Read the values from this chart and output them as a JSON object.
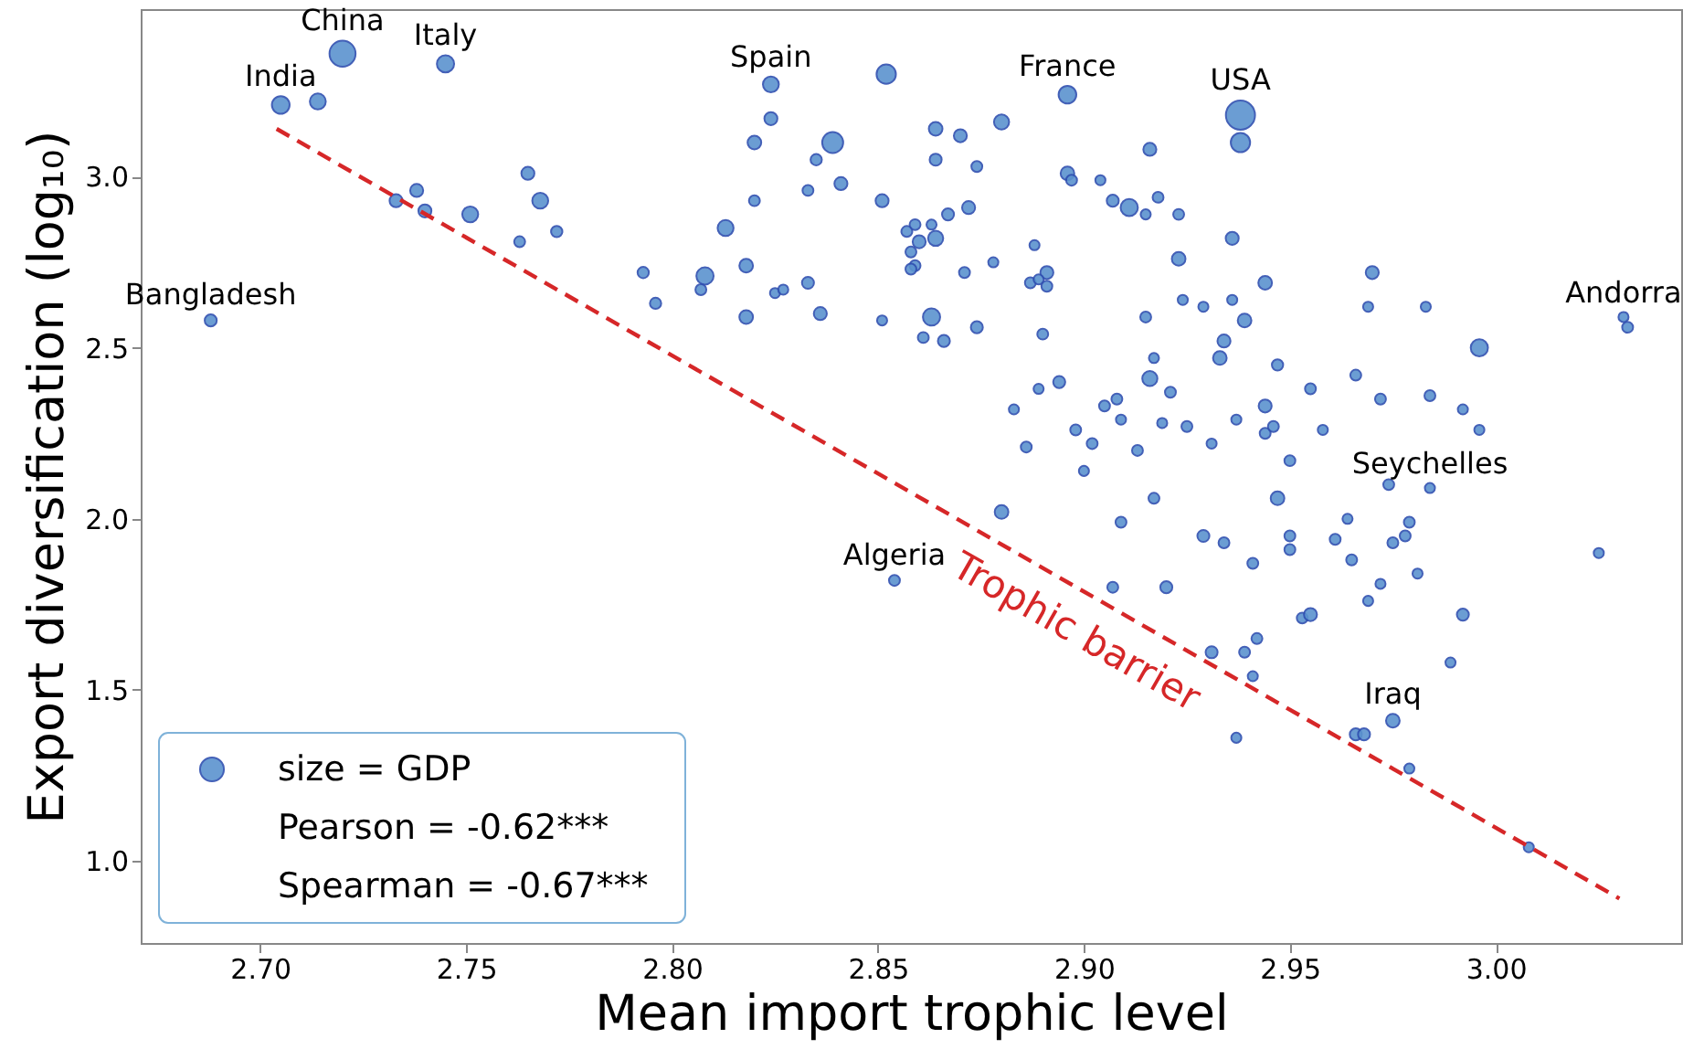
{
  "chart_data": {
    "type": "bubble",
    "xlabel": "Mean import trophic level",
    "ylabel": "Export diversification (log₁₀)",
    "xlim": [
      2.671,
      3.045
    ],
    "ylim": [
      0.76,
      3.49
    ],
    "xticks": [
      {
        "value": 2.7,
        "label": "2.70"
      },
      {
        "value": 2.75,
        "label": "2.75"
      },
      {
        "value": 2.8,
        "label": "2.80"
      },
      {
        "value": 2.85,
        "label": "2.85"
      },
      {
        "value": 2.9,
        "label": "2.90"
      },
      {
        "value": 2.95,
        "label": "2.95"
      },
      {
        "value": 3.0,
        "label": "3.00"
      }
    ],
    "yticks": [
      {
        "value": 1.0,
        "label": "1.0"
      },
      {
        "value": 1.5,
        "label": "1.5"
      },
      {
        "value": 2.0,
        "label": "2.0"
      },
      {
        "value": 2.5,
        "label": "2.5"
      },
      {
        "value": 3.0,
        "label": "3.0"
      }
    ],
    "legend": "bottom left",
    "series": [
      {
        "name": "size = GDP",
        "type": "bubble",
        "color": "#5b93cf",
        "x": [
          2.72,
          2.745,
          2.705,
          2.714,
          2.733,
          2.738,
          2.74,
          2.751,
          2.765,
          2.768,
          2.763,
          2.772,
          2.793,
          2.796,
          2.688,
          2.824,
          2.852,
          2.896,
          2.824,
          2.82,
          2.839,
          2.835,
          2.833,
          2.841,
          2.82,
          2.851,
          2.813,
          2.864,
          2.87,
          2.88,
          2.864,
          2.874,
          2.867,
          2.872,
          2.859,
          2.857,
          2.863,
          2.86,
          2.864,
          2.858,
          2.859,
          2.858,
          2.871,
          2.878,
          2.888,
          2.891,
          2.887,
          2.889,
          2.891,
          2.896,
          2.897,
          2.904,
          2.907,
          2.911,
          2.916,
          2.918,
          2.915,
          2.808,
          2.807,
          2.818,
          2.825,
          2.827,
          2.833,
          2.818,
          2.836,
          2.851,
          2.863,
          2.861,
          2.866,
          2.874,
          2.89,
          2.915,
          2.917,
          2.916,
          2.894,
          2.889,
          2.883,
          2.905,
          2.908,
          2.909,
          2.919,
          2.898,
          2.902,
          2.886,
          2.913,
          2.9,
          2.917,
          2.938,
          2.938,
          2.923,
          2.936,
          2.923,
          2.944,
          2.97,
          2.924,
          2.929,
          2.936,
          2.939,
          2.969,
          2.983,
          2.934,
          2.933,
          2.947,
          2.996,
          3.031,
          3.032,
          2.921,
          2.955,
          2.966,
          2.972,
          2.984,
          2.992,
          2.996,
          2.944,
          2.925,
          2.937,
          2.944,
          2.946,
          2.958,
          2.931,
          2.95,
          2.974,
          2.984,
          2.947,
          2.964,
          2.979,
          2.929,
          2.934,
          2.95,
          2.95,
          2.961,
          2.975,
          2.978,
          2.965,
          2.941,
          2.981,
          3.025,
          2.92,
          2.972,
          2.969,
          2.953,
          2.955,
          2.992,
          2.931,
          2.939,
          2.942,
          2.941,
          2.989,
          2.975,
          2.966,
          2.968,
          2.937,
          2.979,
          3.008,
          2.854,
          2.88,
          2.909,
          2.907
        ],
        "values": [
          3.36,
          3.33,
          3.21,
          3.22,
          2.93,
          2.96,
          2.9,
          2.89,
          3.01,
          2.93,
          2.81,
          2.84,
          2.72,
          2.63,
          2.58,
          3.27,
          3.3,
          3.24,
          3.17,
          3.1,
          3.1,
          3.05,
          2.96,
          2.98,
          2.93,
          2.93,
          2.85,
          3.14,
          3.12,
          3.16,
          3.05,
          3.03,
          2.89,
          2.91,
          2.86,
          2.84,
          2.86,
          2.81,
          2.82,
          2.78,
          2.74,
          2.73,
          2.72,
          2.75,
          2.8,
          2.72,
          2.69,
          2.7,
          2.68,
          3.01,
          2.99,
          2.99,
          2.93,
          2.91,
          3.08,
          2.94,
          2.89,
          2.71,
          2.67,
          2.74,
          2.66,
          2.67,
          2.69,
          2.59,
          2.6,
          2.58,
          2.59,
          2.53,
          2.52,
          2.56,
          2.54,
          2.59,
          2.47,
          2.41,
          2.4,
          2.38,
          2.32,
          2.33,
          2.35,
          2.29,
          2.28,
          2.26,
          2.22,
          2.21,
          2.2,
          2.14,
          2.06,
          3.18,
          3.1,
          2.89,
          2.82,
          2.76,
          2.69,
          2.72,
          2.64,
          2.62,
          2.64,
          2.58,
          2.62,
          2.62,
          2.52,
          2.47,
          2.45,
          2.5,
          2.59,
          2.56,
          2.37,
          2.38,
          2.42,
          2.35,
          2.36,
          2.32,
          2.26,
          2.33,
          2.27,
          2.29,
          2.25,
          2.27,
          2.26,
          2.22,
          2.17,
          2.1,
          2.09,
          2.06,
          2.0,
          1.99,
          1.95,
          1.93,
          1.95,
          1.91,
          1.94,
          1.93,
          1.95,
          1.88,
          1.87,
          1.84,
          1.9,
          1.8,
          1.81,
          1.76,
          1.71,
          1.72,
          1.72,
          1.61,
          1.61,
          1.65,
          1.54,
          1.58,
          1.41,
          1.37,
          1.37,
          1.36,
          1.27,
          1.04,
          1.82,
          2.02,
          1.99,
          1.8
        ],
        "sizes": [
          0.8,
          0.35,
          0.37,
          0.3,
          0.2,
          0.2,
          0.2,
          0.3,
          0.2,
          0.3,
          0.14,
          0.15,
          0.15,
          0.15,
          0.17,
          0.3,
          0.44,
          0.37,
          0.2,
          0.22,
          0.52,
          0.15,
          0.14,
          0.2,
          0.14,
          0.2,
          0.3,
          0.22,
          0.2,
          0.27,
          0.17,
          0.14,
          0.17,
          0.2,
          0.14,
          0.14,
          0.12,
          0.2,
          0.27,
          0.14,
          0.14,
          0.14,
          0.14,
          0.12,
          0.12,
          0.2,
          0.14,
          0.12,
          0.14,
          0.22,
          0.14,
          0.12,
          0.17,
          0.35,
          0.2,
          0.14,
          0.12,
          0.35,
          0.14,
          0.22,
          0.12,
          0.12,
          0.17,
          0.22,
          0.2,
          0.12,
          0.35,
          0.14,
          0.17,
          0.17,
          0.14,
          0.14,
          0.12,
          0.27,
          0.17,
          0.12,
          0.12,
          0.14,
          0.14,
          0.12,
          0.12,
          0.14,
          0.14,
          0.14,
          0.14,
          0.12,
          0.14,
          1,
          0.44,
          0.14,
          0.2,
          0.22,
          0.22,
          0.2,
          0.12,
          0.12,
          0.12,
          0.22,
          0.12,
          0.12,
          0.2,
          0.22,
          0.15,
          0.35,
          0.12,
          0.14,
          0.14,
          0.14,
          0.14,
          0.14,
          0.14,
          0.12,
          0.12,
          0.2,
          0.14,
          0.12,
          0.14,
          0.14,
          0.12,
          0.12,
          0.14,
          0.14,
          0.12,
          0.22,
          0.12,
          0.14,
          0.17,
          0.14,
          0.14,
          0.14,
          0.14,
          0.14,
          0.14,
          0.14,
          0.14,
          0.12,
          0.12,
          0.17,
          0.12,
          0.12,
          0.14,
          0.2,
          0.17,
          0.17,
          0.14,
          0.14,
          0.12,
          0.12,
          0.22,
          0.17,
          0.17,
          0.12,
          0.12,
          0.12,
          0.14,
          0.22,
          0.14,
          0.14
        ]
      },
      {
        "name": "Trophic barrier",
        "type": "line",
        "color": "#d62728",
        "line_style": "dashed",
        "x": [
          2.704,
          3.03
        ],
        "values": [
          3.14,
          0.89
        ]
      }
    ],
    "annotations": [
      {
        "text": "China",
        "x": 2.72,
        "y": 3.36
      },
      {
        "text": "India",
        "x": 2.705,
        "y": 3.21
      },
      {
        "text": "Italy",
        "x": 2.745,
        "y": 3.33
      },
      {
        "text": "Bangladesh",
        "x": 2.688,
        "y": 2.58
      },
      {
        "text": "Spain",
        "x": 2.824,
        "y": 3.27
      },
      {
        "text": "France",
        "x": 2.896,
        "y": 3.24
      },
      {
        "text": "USA",
        "x": 2.938,
        "y": 3.18
      },
      {
        "text": "Andorra",
        "x": 3.031,
        "y": 2.59
      },
      {
        "text": "Seychelles",
        "x": 2.984,
        "y": 2.09
      },
      {
        "text": "Algeria",
        "x": 2.854,
        "y": 1.82
      },
      {
        "text": "Iraq",
        "x": 2.975,
        "y": 1.41
      },
      "Pearson = -0.62***",
      "Spearman = -0.67***"
    ]
  }
}
